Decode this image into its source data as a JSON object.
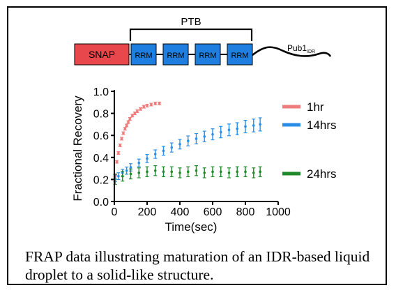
{
  "domain_diagram": {
    "snap_label": "SNAP",
    "rrm_label": "RRM",
    "ptb_label": "PTB",
    "tail_label": "Pub1",
    "tail_sub": "IDR",
    "colors": {
      "snap": "#e8474b",
      "rrm": "#1e7fe0",
      "line": "#000000"
    }
  },
  "chart_data": {
    "type": "scatter",
    "xlabel": "Time(sec)",
    "ylabel": "Fractional Recovery",
    "xlim": [
      0,
      1000
    ],
    "ylim": [
      0,
      1.0
    ],
    "xticks": [
      0,
      200,
      400,
      600,
      800,
      1000
    ],
    "yticks": [
      0.0,
      0.2,
      0.4,
      0.6,
      0.8,
      1.0
    ],
    "legend_position": "right",
    "series": [
      {
        "name": "1hr",
        "color": "#f07d7d",
        "error_bars": true,
        "points": [
          [
            5,
            0.24
          ],
          [
            15,
            0.36
          ],
          [
            25,
            0.44
          ],
          [
            35,
            0.51
          ],
          [
            45,
            0.57
          ],
          [
            55,
            0.62
          ],
          [
            65,
            0.66
          ],
          [
            75,
            0.69
          ],
          [
            85,
            0.72
          ],
          [
            95,
            0.75
          ],
          [
            110,
            0.78
          ],
          [
            125,
            0.8
          ],
          [
            140,
            0.82
          ],
          [
            160,
            0.84
          ],
          [
            180,
            0.86
          ],
          [
            200,
            0.87
          ],
          [
            225,
            0.88
          ],
          [
            250,
            0.89
          ],
          [
            275,
            0.89
          ]
        ]
      },
      {
        "name": "14hrs",
        "color": "#2a8fe8",
        "error_bars": true,
        "points": [
          [
            5,
            0.21
          ],
          [
            25,
            0.23
          ],
          [
            50,
            0.26
          ],
          [
            75,
            0.28
          ],
          [
            100,
            0.31
          ],
          [
            150,
            0.35
          ],
          [
            200,
            0.39
          ],
          [
            250,
            0.43
          ],
          [
            300,
            0.46
          ],
          [
            350,
            0.49
          ],
          [
            400,
            0.52
          ],
          [
            450,
            0.55
          ],
          [
            500,
            0.57
          ],
          [
            550,
            0.59
          ],
          [
            600,
            0.61
          ],
          [
            650,
            0.63
          ],
          [
            700,
            0.65
          ],
          [
            750,
            0.66
          ],
          [
            800,
            0.68
          ],
          [
            850,
            0.69
          ],
          [
            890,
            0.7
          ]
        ]
      },
      {
        "name": "24hrs",
        "color": "#1e8a2a",
        "error_bars": true,
        "points": [
          [
            5,
            0.2
          ],
          [
            50,
            0.23
          ],
          [
            100,
            0.25
          ],
          [
            150,
            0.26
          ],
          [
            200,
            0.27
          ],
          [
            250,
            0.28
          ],
          [
            300,
            0.27
          ],
          [
            350,
            0.27
          ],
          [
            400,
            0.26
          ],
          [
            450,
            0.27
          ],
          [
            500,
            0.28
          ],
          [
            550,
            0.26
          ],
          [
            600,
            0.27
          ],
          [
            650,
            0.27
          ],
          [
            700,
            0.26
          ],
          [
            750,
            0.27
          ],
          [
            800,
            0.27
          ],
          [
            850,
            0.26
          ],
          [
            890,
            0.27
          ]
        ]
      }
    ]
  },
  "caption": "FRAP data illustrating maturation of an IDR-based liquid droplet to a solid-like structure."
}
